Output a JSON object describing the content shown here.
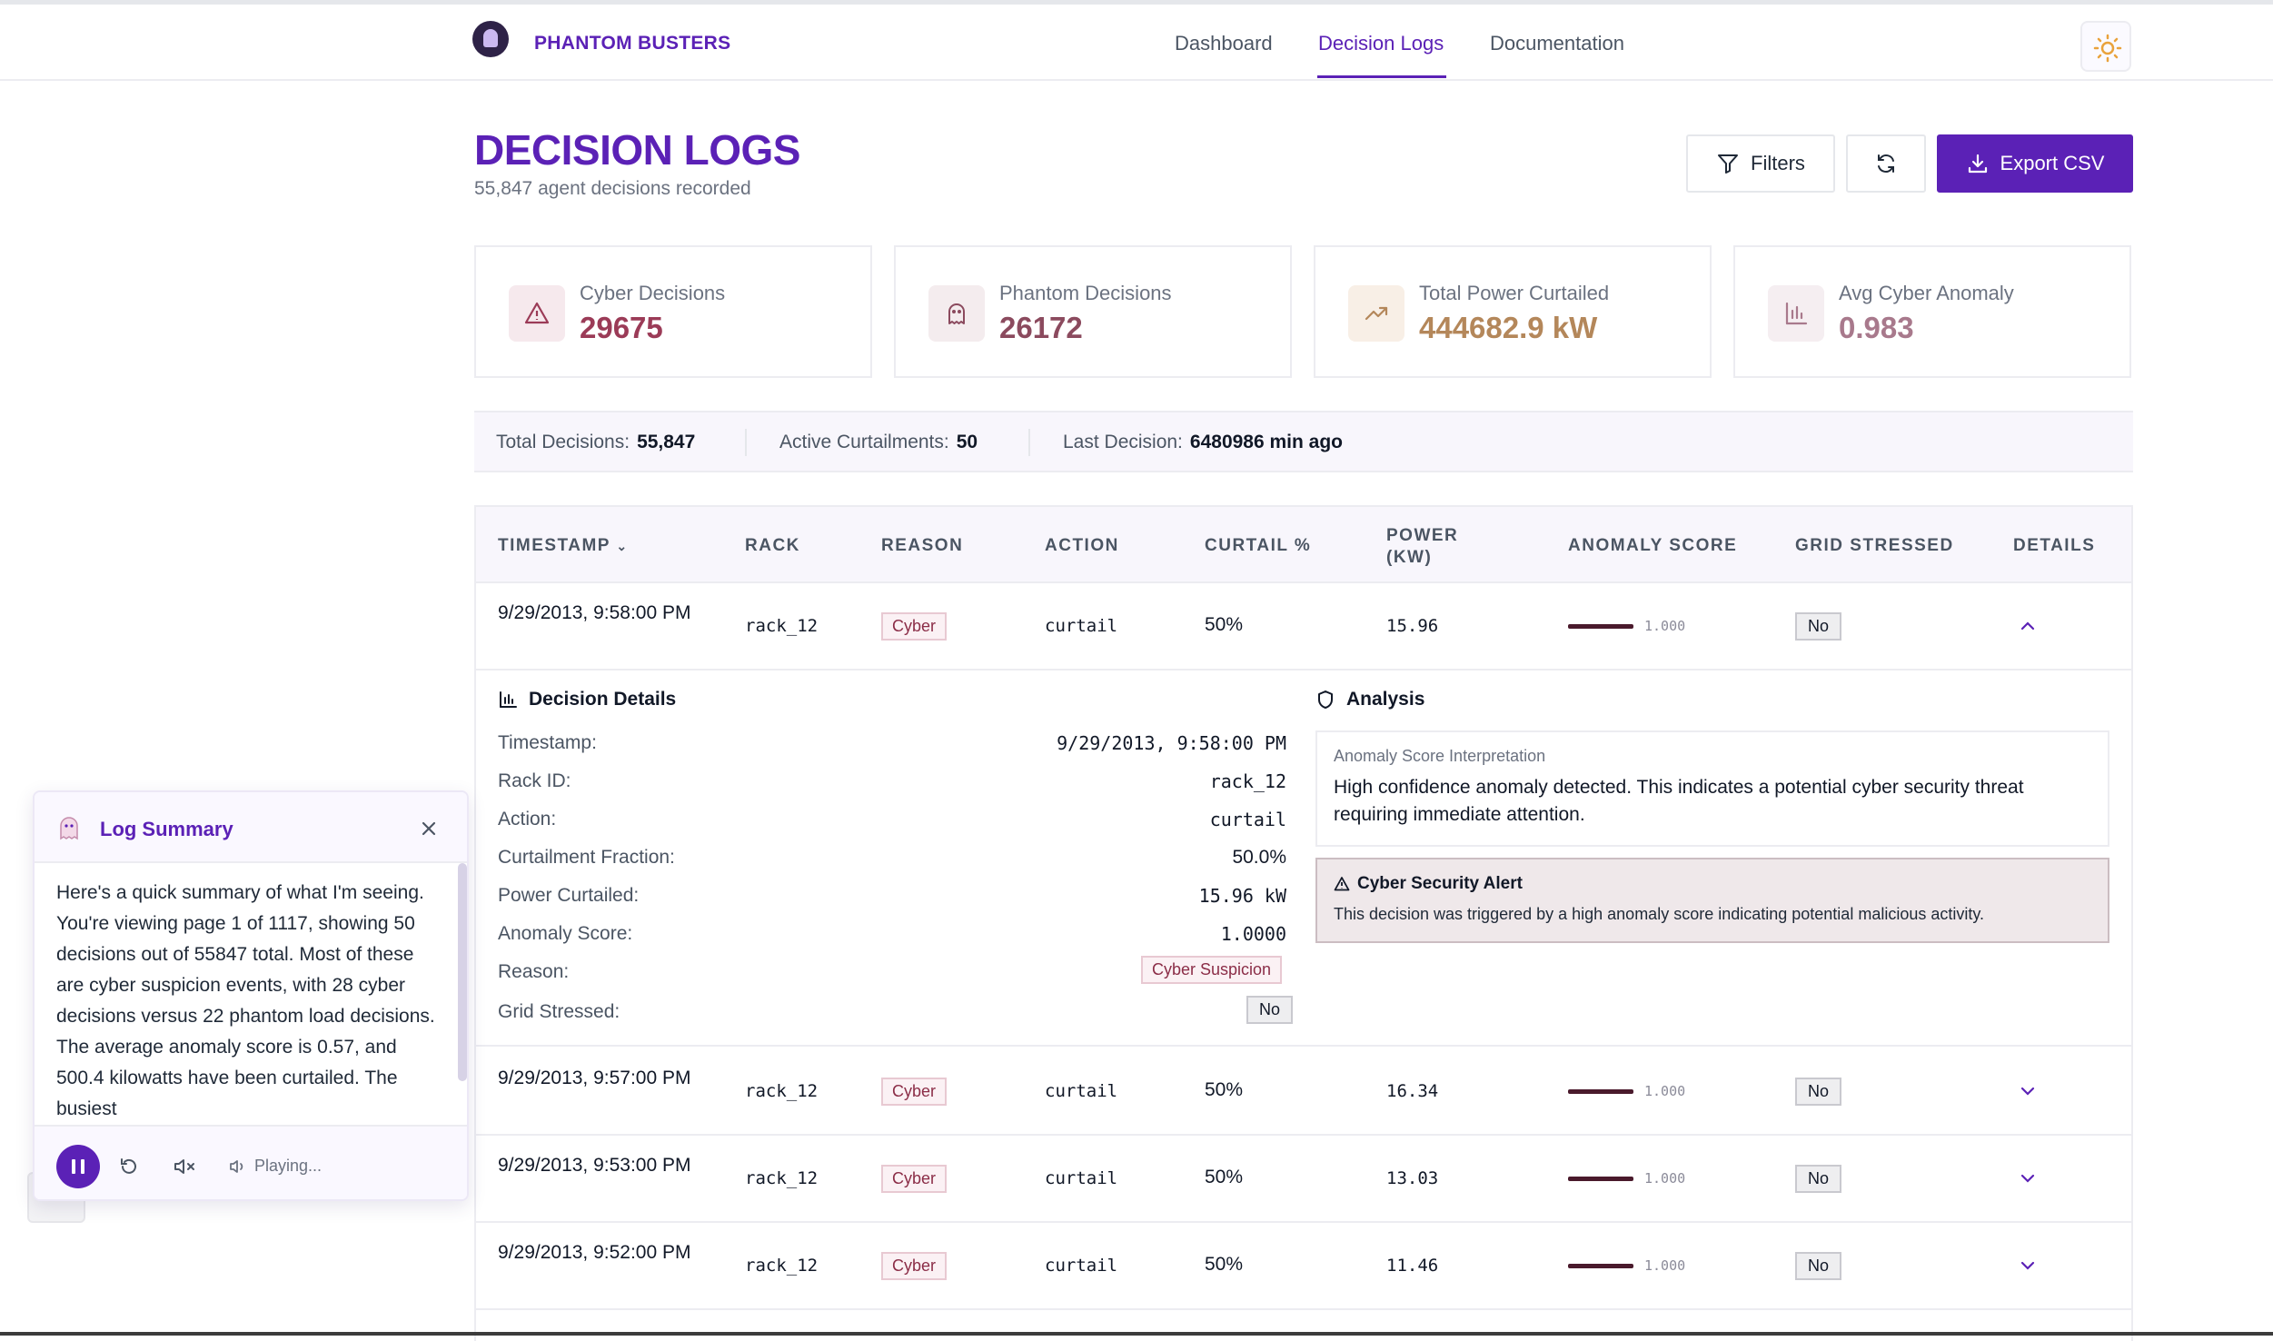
{
  "brand": {
    "name": "PHANTOM BUSTERS"
  },
  "nav": {
    "items": [
      "Dashboard",
      "Decision Logs",
      "Documentation"
    ],
    "active": "Decision Logs"
  },
  "page": {
    "title": "DECISION LOGS",
    "subtitle": "55,847 agent decisions recorded"
  },
  "toolbar": {
    "filters_label": "Filters",
    "export_label": "Export CSV"
  },
  "stats": [
    {
      "label": "Cyber Decisions",
      "value": "29675",
      "color": "#9b3b57"
    },
    {
      "label": "Phantom Decisions",
      "value": "26172",
      "color": "#8b4a5e"
    },
    {
      "label": "Total Power Curtailed",
      "value": "444682.9 kW",
      "color": "#b4875a"
    },
    {
      "label": "Avg Cyber Anomaly",
      "value": "0.983",
      "color": "#a8798c"
    }
  ],
  "summary_bar": {
    "total_label": "Total Decisions:",
    "total_value": "55,847",
    "active_label": "Active Curtailments:",
    "active_value": "50",
    "last_label": "Last Decision:",
    "last_value": "6480986 min ago"
  },
  "table": {
    "columns": [
      "TIMESTAMP",
      "RACK",
      "REASON",
      "ACTION",
      "CURTAIL %",
      "POWER (KW)",
      "ANOMALY SCORE",
      "GRID STRESSED",
      "DETAILS"
    ],
    "rows": [
      {
        "timestamp": "9/29/2013, 9:58:00 PM",
        "rack": "rack_12",
        "reason": "Cyber",
        "action": "curtail",
        "curtail": "50%",
        "power": "15.96",
        "anomaly": "1.000",
        "anomaly_fraction": 1.0,
        "grid": "No",
        "expanded": true
      },
      {
        "timestamp": "9/29/2013, 9:57:00 PM",
        "rack": "rack_12",
        "reason": "Cyber",
        "action": "curtail",
        "curtail": "50%",
        "power": "16.34",
        "anomaly": "1.000",
        "anomaly_fraction": 1.0,
        "grid": "No",
        "expanded": false
      },
      {
        "timestamp": "9/29/2013, 9:53:00 PM",
        "rack": "rack_12",
        "reason": "Cyber",
        "action": "curtail",
        "curtail": "50%",
        "power": "13.03",
        "anomaly": "1.000",
        "anomaly_fraction": 1.0,
        "grid": "No",
        "expanded": false
      },
      {
        "timestamp": "9/29/2013, 9:52:00 PM",
        "rack": "rack_12",
        "reason": "Cyber",
        "action": "curtail",
        "curtail": "50%",
        "power": "11.46",
        "anomaly": "1.000",
        "anomaly_fraction": 1.0,
        "grid": "No",
        "expanded": false
      }
    ]
  },
  "details": {
    "title": "Decision Details",
    "fields": [
      {
        "label": "Timestamp:",
        "value": "9/29/2013, 9:58:00 PM"
      },
      {
        "label": "Rack ID:",
        "value": "rack_12"
      },
      {
        "label": "Action:",
        "value": "curtail"
      },
      {
        "label": "Curtailment Fraction:",
        "value": "50.0%"
      },
      {
        "label": "Power Curtailed:",
        "value": "15.96 kW"
      },
      {
        "label": "Anomaly Score:",
        "value": "1.0000"
      },
      {
        "label": "Reason:",
        "value": "Cyber Suspicion"
      },
      {
        "label": "Grid Stressed:",
        "value": "No"
      }
    ]
  },
  "analysis": {
    "title": "Analysis",
    "interp_title": "Anomaly Score Interpretation",
    "interp_text": "High confidence anomaly detected. This indicates a potential cyber security threat requiring immediate attention.",
    "alert_title": "Cyber Security Alert",
    "alert_text": "This decision was triggered by a high anomaly score indicating potential malicious activity."
  },
  "log_summary": {
    "title": "Log Summary",
    "text": "Here's a quick summary of what I'm seeing. You're viewing page 1 of 1117, showing 50 decisions out of 55847 total. Most of these are cyber suspicion events, with 28 cyber decisions versus 22 phantom load decisions. The average anomaly score is 0.57, and 500.4 kilowatts have been curtailed. The busiest",
    "status": "Playing..."
  }
}
